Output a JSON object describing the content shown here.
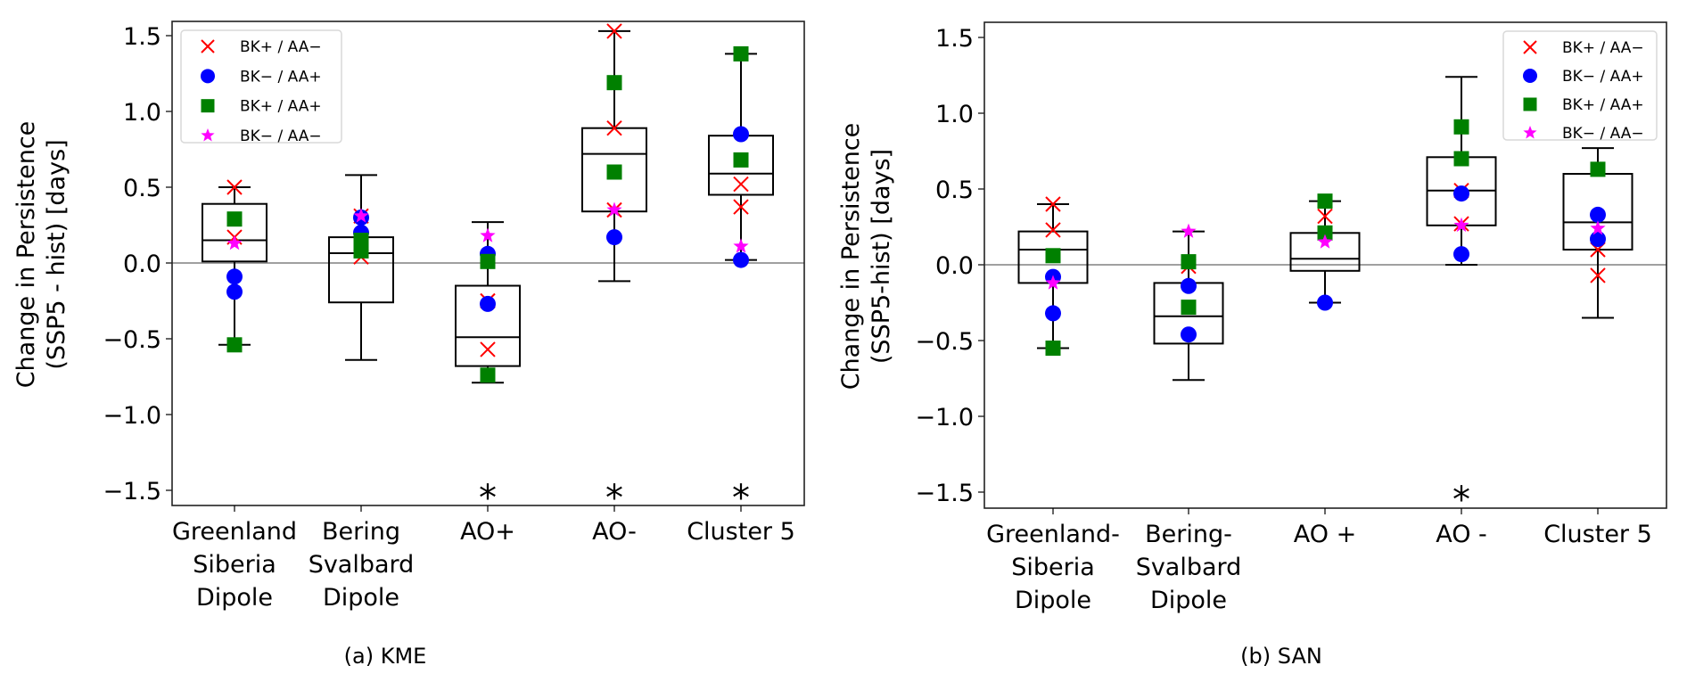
{
  "legend": [
    {
      "key": "bkp_aam",
      "label": "BK+ / AA−",
      "marker": "x",
      "color": "#ff0000"
    },
    {
      "key": "bkm_aap",
      "label": "BK− / AA+",
      "marker": "circle",
      "color": "#0000ff"
    },
    {
      "key": "bkp_aap",
      "label": "BK+ / AA+",
      "marker": "square",
      "color": "#008000"
    },
    {
      "key": "bkm_aam",
      "label": "BK− / AA−",
      "marker": "star",
      "color": "#ff00ff"
    }
  ],
  "colors": {
    "box": "#000000",
    "zero_line": "#a0a0a0",
    "legend_border": "#d9d9d9"
  },
  "chart_data": [
    {
      "type": "box",
      "caption": "(a)  KME",
      "ylabel": [
        "Change in Persistence",
        "(SSP5 - hist) [days]"
      ],
      "ylim": [
        -1.6,
        1.6
      ],
      "yticks": [
        1.5,
        1.0,
        0.5,
        0.0,
        -0.5,
        -1.0,
        -1.5
      ],
      "ytick_labels": [
        "1.5",
        "1.0",
        "0.5",
        "0.0",
        "−0.5",
        "−1.0",
        "−1.5"
      ],
      "reference_line": 0.0,
      "legend_position": "top-left",
      "categories": [
        [
          "Greenland",
          "Siberia",
          "Dipole"
        ],
        [
          "Bering",
          "Svalbard",
          "Dipole"
        ],
        [
          "AO+"
        ],
        [
          "AO-"
        ],
        [
          "Cluster 5"
        ]
      ],
      "boxes": [
        {
          "whisker_low": -0.54,
          "q1": 0.01,
          "median": 0.15,
          "q3": 0.39,
          "whisker_high": 0.5,
          "significant": false
        },
        {
          "whisker_low": -0.64,
          "q1": -0.26,
          "median": 0.065,
          "q3": 0.17,
          "whisker_high": 0.58,
          "significant": false
        },
        {
          "whisker_low": -0.79,
          "q1": -0.68,
          "median": -0.49,
          "q3": -0.15,
          "whisker_high": 0.27,
          "significant": true
        },
        {
          "whisker_low": -0.12,
          "q1": 0.34,
          "median": 0.72,
          "q3": 0.89,
          "whisker_high": 1.53,
          "significant": true
        },
        {
          "whisker_low": 0.02,
          "q1": 0.45,
          "median": 0.59,
          "q3": 0.84,
          "whisker_high": 1.38,
          "significant": true
        }
      ],
      "points": {
        "bkp_aam": [
          [
            0.5,
            0.17
          ],
          [
            0.31,
            0.04
          ],
          [
            -0.25,
            -0.57
          ],
          [
            1.53,
            0.89,
            0.35
          ],
          [
            0.52,
            0.37
          ]
        ],
        "bkm_aap": [
          [
            -0.09,
            -0.19
          ],
          [
            0.3,
            0.2
          ],
          [
            0.06,
            -0.27
          ],
          [
            0.17
          ],
          [
            0.85,
            0.02
          ]
        ],
        "bkp_aap": [
          [
            0.29,
            -0.54
          ],
          [
            0.15,
            0.08
          ],
          [
            0.01,
            -0.74
          ],
          [
            1.19,
            0.6
          ],
          [
            1.38,
            0.68
          ]
        ],
        "bkm_aam": [
          [
            0.13
          ],
          [
            0.31
          ],
          [
            0.18
          ],
          [
            0.35
          ],
          [
            0.11
          ]
        ]
      },
      "significance_marker": "*"
    },
    {
      "type": "box",
      "caption": "(b) SAN",
      "ylabel": [
        "Change in Persistence",
        "(SSP5-hist) [days]"
      ],
      "ylim": [
        -1.6,
        1.6
      ],
      "yticks": [
        1.5,
        1.0,
        0.5,
        0.0,
        -0.5,
        -1.0,
        -1.5
      ],
      "ytick_labels": [
        "1.5",
        "1.0",
        "0.5",
        "0.0",
        "−0.5",
        "−1.0",
        "−1.5"
      ],
      "reference_line": 0.0,
      "legend_position": "top-right",
      "categories": [
        [
          "Greenland-",
          "Siberia",
          "Dipole"
        ],
        [
          "Bering-",
          "Svalbard",
          "Dipole"
        ],
        [
          "AO +"
        ],
        [
          "AO -"
        ],
        [
          "Cluster 5"
        ]
      ],
      "boxes": [
        {
          "whisker_low": -0.55,
          "q1": -0.12,
          "median": 0.1,
          "q3": 0.22,
          "whisker_high": 0.4,
          "significant": false
        },
        {
          "whisker_low": -0.76,
          "q1": -0.52,
          "median": -0.34,
          "q3": -0.12,
          "whisker_high": 0.22,
          "significant": false
        },
        {
          "whisker_low": -0.25,
          "q1": -0.04,
          "median": 0.04,
          "q3": 0.21,
          "whisker_high": 0.42,
          "significant": false
        },
        {
          "whisker_low": 0.0,
          "q1": 0.26,
          "median": 0.49,
          "q3": 0.71,
          "whisker_high": 1.24,
          "significant": true
        },
        {
          "whisker_low": -0.35,
          "q1": 0.1,
          "median": 0.28,
          "q3": 0.6,
          "whisker_high": 0.77,
          "significant": false
        }
      ],
      "points": {
        "bkp_aam": [
          [
            0.4,
            0.23
          ],
          [
            -0.01
          ],
          [
            0.32
          ],
          [
            0.49,
            0.27
          ],
          [
            0.1,
            -0.07
          ]
        ],
        "bkm_aap": [
          [
            -0.08,
            -0.32
          ],
          [
            -0.14,
            -0.46
          ],
          [
            -0.25
          ],
          [
            0.47,
            0.07
          ],
          [
            0.33,
            0.17
          ]
        ],
        "bkp_aap": [
          [
            0.06,
            -0.55
          ],
          [
            0.02,
            -0.28
          ],
          [
            0.42,
            0.21
          ],
          [
            0.91,
            0.7
          ],
          [
            0.63
          ]
        ],
        "bkm_aam": [
          [
            -0.12
          ],
          [
            0.22
          ],
          [
            0.15
          ],
          [
            0.26
          ],
          [
            0.24
          ]
        ]
      },
      "significance_marker": "*"
    }
  ]
}
